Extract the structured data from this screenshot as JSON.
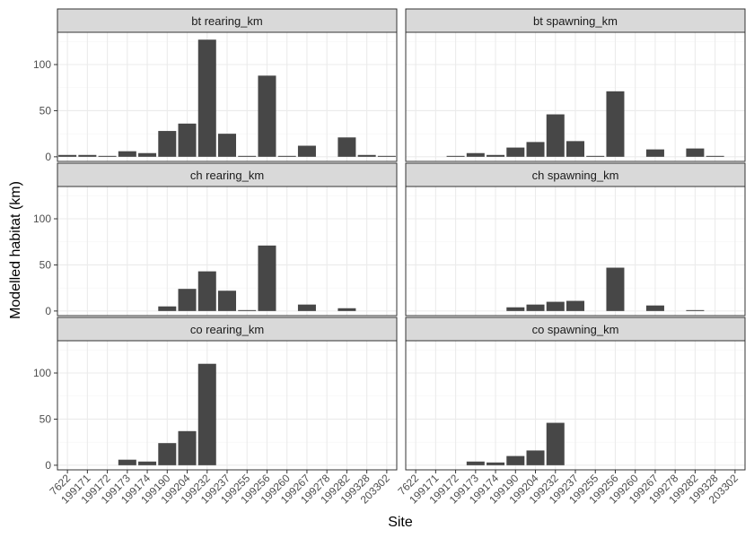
{
  "chart_data": {
    "type": "bar",
    "xlabel": "Site",
    "ylabel": "Modelled habitat (km)",
    "ylim": [
      -5,
      135
    ],
    "y_ticks": [
      0,
      50,
      100
    ],
    "grid": true,
    "facet_layout": "3 rows x 2 columns",
    "categories": [
      "7622",
      "199171",
      "199172",
      "199173",
      "199174",
      "199190",
      "199204",
      "199232",
      "199237",
      "199255",
      "199256",
      "199260",
      "199267",
      "199278",
      "199282",
      "199328",
      "203302"
    ],
    "facets": [
      {
        "name": "bt rearing_km",
        "values": [
          2,
          2,
          1,
          6,
          4,
          28,
          36,
          127,
          25,
          1,
          88,
          1,
          12,
          0,
          21,
          2,
          1
        ]
      },
      {
        "name": "bt spawning_km",
        "values": [
          0,
          0,
          1,
          4,
          2,
          10,
          16,
          46,
          17,
          1,
          71,
          0,
          8,
          0,
          9,
          1,
          0
        ]
      },
      {
        "name": "ch rearing_km",
        "values": [
          0,
          0,
          0,
          0,
          0,
          5,
          24,
          43,
          22,
          1,
          71,
          0,
          7,
          0,
          3,
          0,
          0
        ]
      },
      {
        "name": "ch spawning_km",
        "values": [
          0,
          0,
          0,
          0,
          0,
          4,
          7,
          10,
          11,
          0,
          47,
          0,
          6,
          0,
          1,
          0,
          0
        ]
      },
      {
        "name": "co rearing_km",
        "values": [
          0,
          0,
          0,
          6,
          4,
          24,
          37,
          110,
          0,
          0,
          0,
          0,
          0,
          0,
          0,
          0,
          0
        ]
      },
      {
        "name": "co spawning_km",
        "values": [
          0,
          0,
          0,
          4,
          3,
          10,
          16,
          46,
          0,
          0,
          0,
          0,
          0,
          0,
          0,
          0,
          0
        ]
      }
    ]
  },
  "colors": {
    "bar": "#474747",
    "panel_background": "#ffffff",
    "panel_border": "#333333",
    "grid_major": "#ebebeb",
    "grid_minor": "#f5f5f5",
    "strip_background": "#d9d9d9",
    "strip_border": "#333333"
  }
}
